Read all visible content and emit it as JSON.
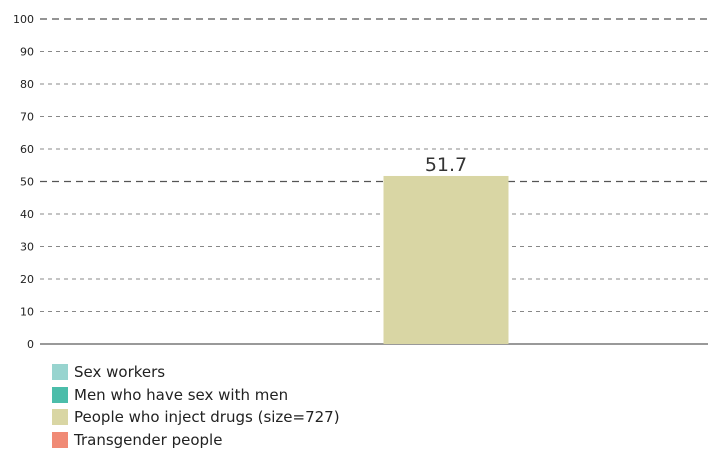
{
  "chart_data": {
    "type": "bar",
    "ylim": [
      0,
      100
    ],
    "yticks": [
      0,
      10,
      20,
      30,
      40,
      50,
      60,
      70,
      80,
      90,
      100
    ],
    "grid": "dashed horizontal",
    "series": [
      {
        "name": "Sex workers",
        "value": null,
        "color": "#98d4cf"
      },
      {
        "name": "Men who have sex with men",
        "value": null,
        "color": "#4bbdaa"
      },
      {
        "name": "People who inject drugs (size=727)",
        "value": 51.7,
        "color": "#d9d6a4"
      },
      {
        "name": "Transgender people",
        "value": null,
        "color": "#f08a75"
      }
    ],
    "legend_position": "bottom-left"
  }
}
